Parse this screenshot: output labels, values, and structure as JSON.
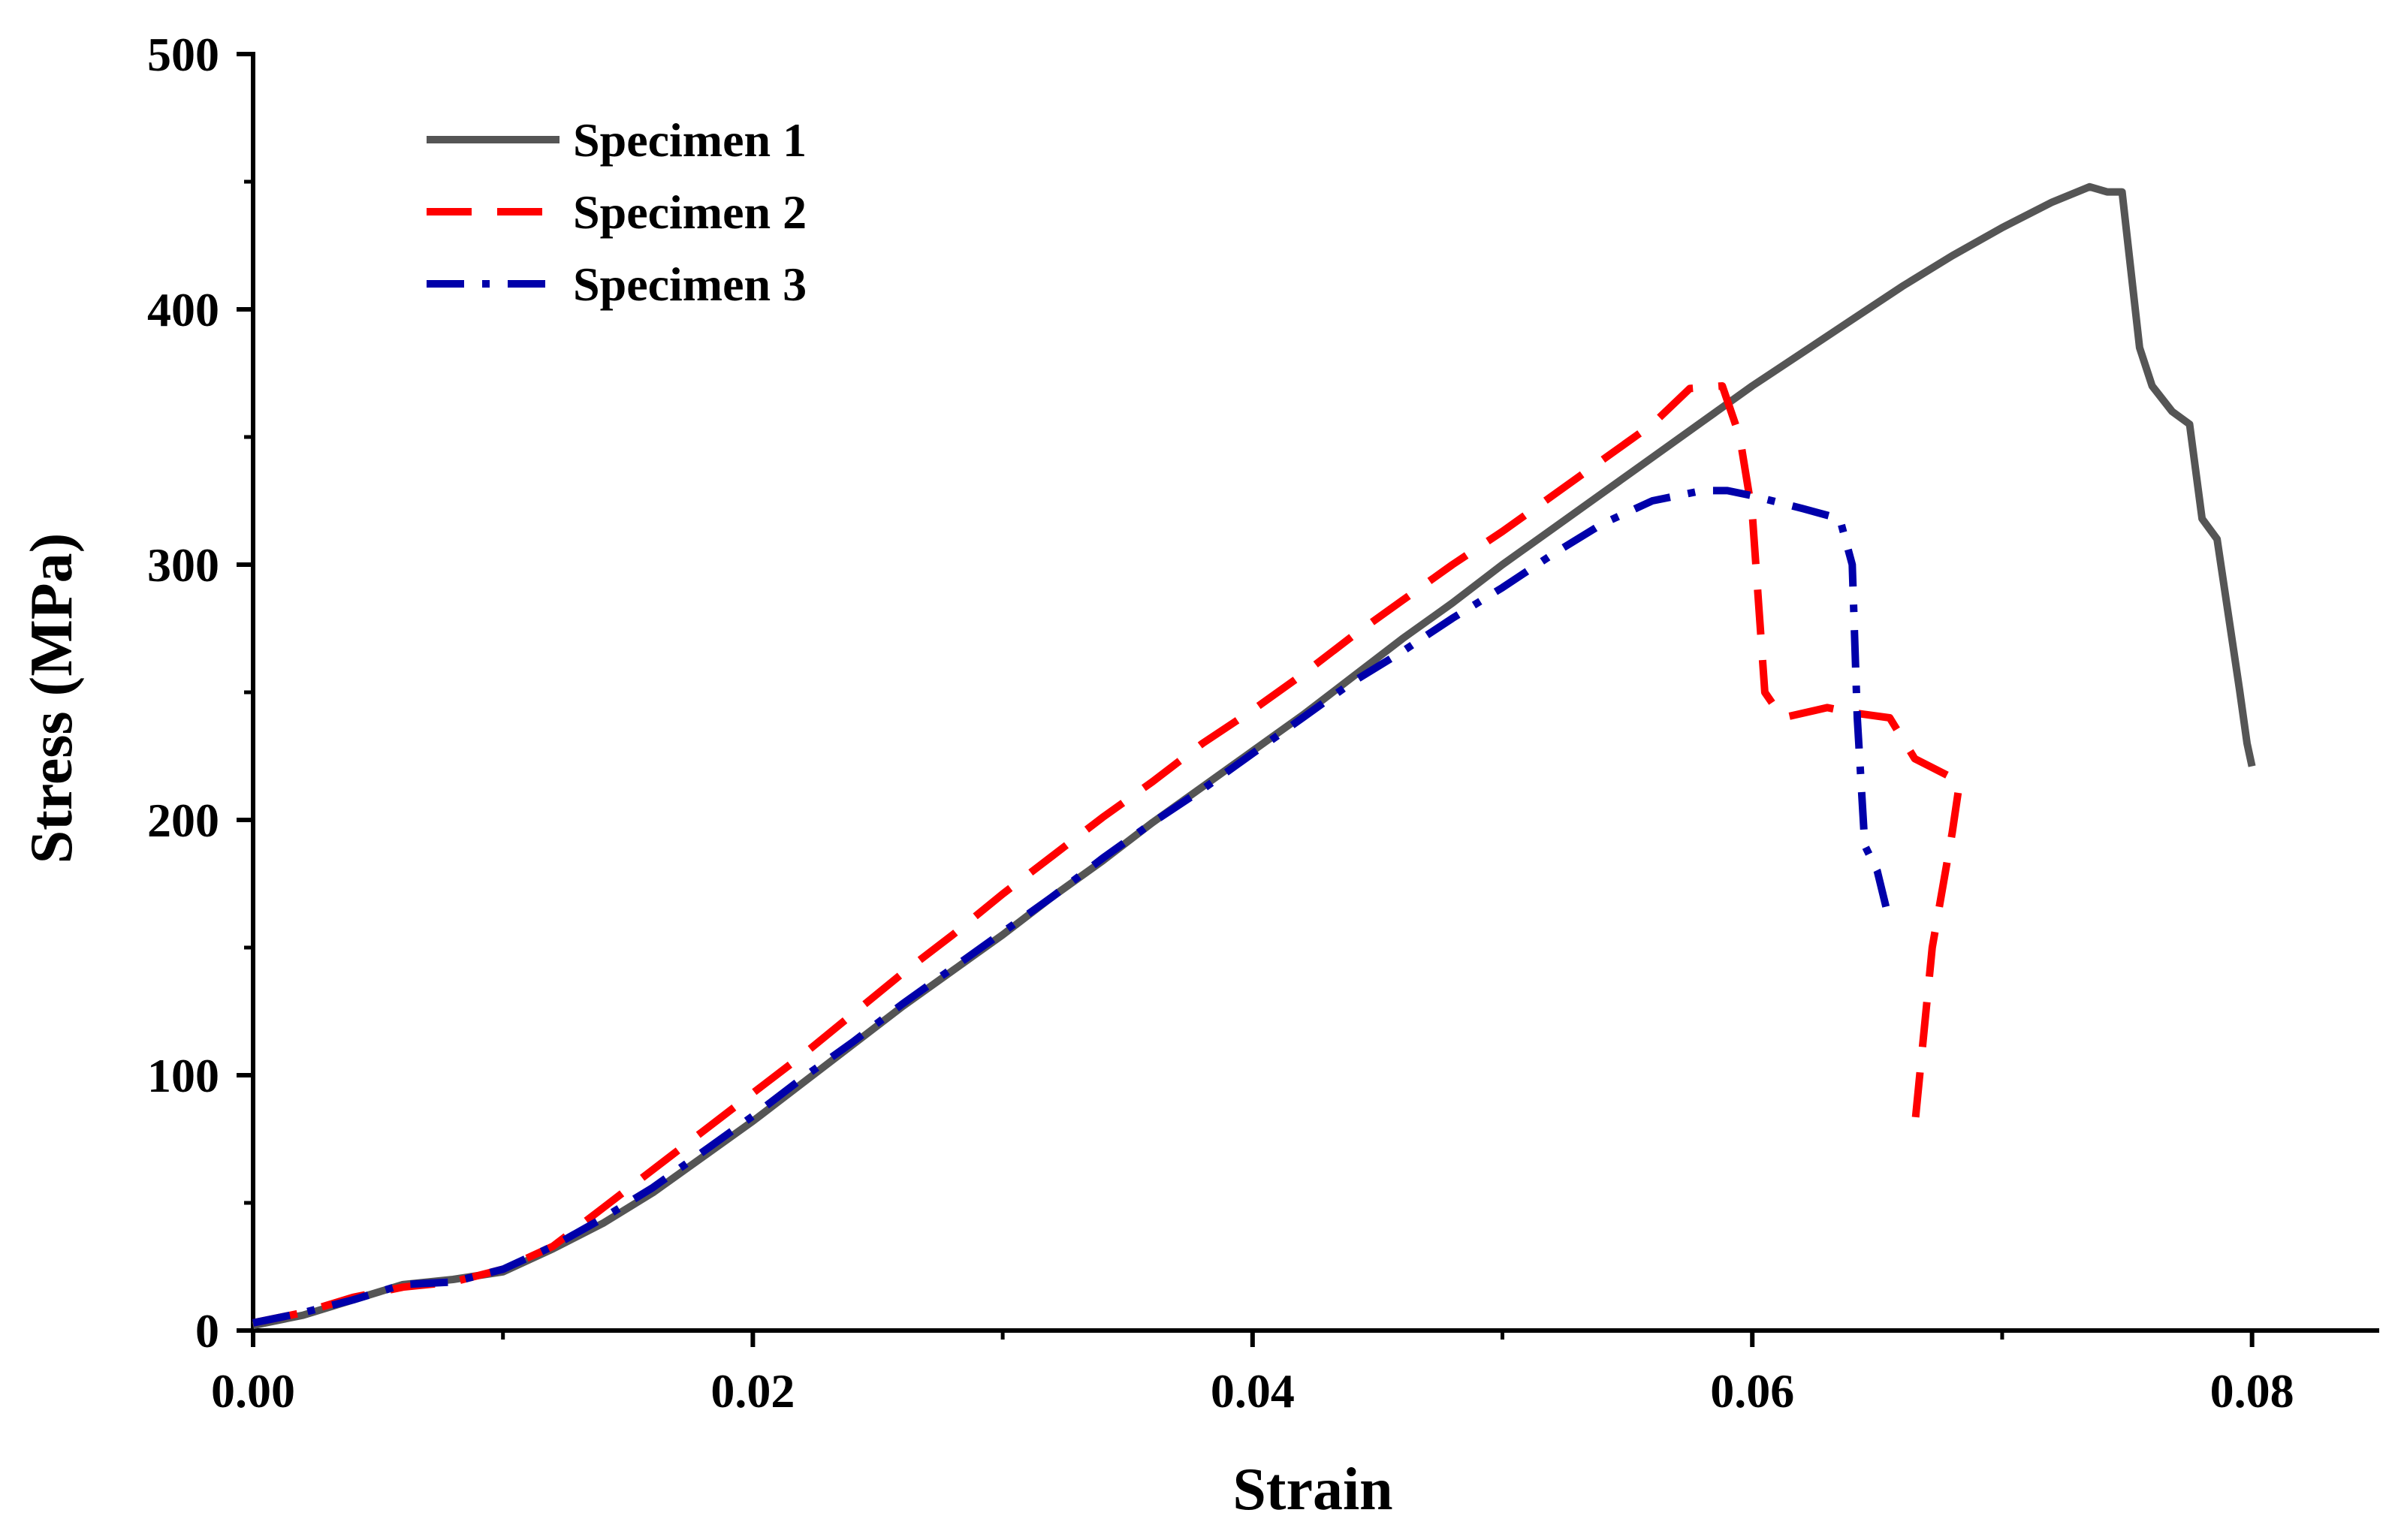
{
  "chart_data": {
    "type": "line",
    "title": "",
    "xlabel": "Strain",
    "ylabel": "Stress (MPa)",
    "xlim": [
      0,
      0.085
    ],
    "ylim": [
      0,
      500
    ],
    "xticks": [
      0.0,
      0.02,
      0.04,
      0.06,
      0.08
    ],
    "xtick_labels": [
      "0.00",
      "0.02",
      "0.04",
      "0.06",
      "0.08"
    ],
    "yticks": [
      0,
      100,
      200,
      300,
      400,
      500
    ],
    "ytick_labels": [
      "0",
      "100",
      "200",
      "300",
      "400",
      "500"
    ],
    "grid": false,
    "legend_position": "top-left",
    "series": [
      {
        "name": "Specimen 1",
        "color": "#555555",
        "dash": "solid",
        "x": [
          0,
          0.002,
          0.004,
          0.006,
          0.008,
          0.01,
          0.012,
          0.014,
          0.016,
          0.018,
          0.02,
          0.022,
          0.024,
          0.026,
          0.028,
          0.03,
          0.032,
          0.034,
          0.036,
          0.038,
          0.04,
          0.042,
          0.044,
          0.046,
          0.048,
          0.05,
          0.052,
          0.054,
          0.056,
          0.058,
          0.06,
          0.062,
          0.064,
          0.066,
          0.068,
          0.07,
          0.072,
          0.0735,
          0.0742,
          0.0748,
          0.0755,
          0.076,
          0.0768,
          0.0775,
          0.078,
          0.0786,
          0.0795,
          0.0798,
          0.08
        ],
        "y": [
          2,
          6,
          12,
          18,
          20,
          23,
          32,
          42,
          54,
          68,
          82,
          97,
          112,
          127,
          141,
          155,
          170,
          184,
          199,
          213,
          227,
          241,
          256,
          271,
          285,
          300,
          314,
          328,
          342,
          356,
          370,
          383,
          396,
          409,
          421,
          432,
          442,
          448,
          446,
          446,
          385,
          370,
          360,
          355,
          318,
          310,
          251,
          230,
          221
        ]
      },
      {
        "name": "Specimen 2",
        "color": "#ff0000",
        "dash": "dashed",
        "x": [
          0,
          0.002,
          0.004,
          0.006,
          0.008,
          0.01,
          0.012,
          0.014,
          0.016,
          0.018,
          0.02,
          0.022,
          0.024,
          0.026,
          0.028,
          0.03,
          0.032,
          0.034,
          0.036,
          0.038,
          0.04,
          0.042,
          0.044,
          0.046,
          0.048,
          0.05,
          0.052,
          0.054,
          0.056,
          0.0575,
          0.0588,
          0.0595,
          0.06,
          0.0605,
          0.0612,
          0.063,
          0.064,
          0.0655,
          0.0665,
          0.0683,
          0.068,
          0.0672,
          0.0665
        ],
        "y": [
          3,
          7,
          13,
          17,
          19,
          24,
          33,
          48,
          63,
          78,
          93,
          108,
          124,
          140,
          155,
          171,
          186,
          201,
          215,
          230,
          243,
          257,
          272,
          286,
          300,
          313,
          327,
          341,
          355,
          369,
          370,
          350,
          320,
          250,
          240,
          244,
          242,
          240,
          224,
          215,
          195,
          150,
          80
        ]
      },
      {
        "name": "Specimen 3",
        "color": "#0000aa",
        "dash": "dashdot",
        "x": [
          0,
          0.002,
          0.004,
          0.006,
          0.008,
          0.01,
          0.012,
          0.014,
          0.016,
          0.018,
          0.02,
          0.022,
          0.024,
          0.026,
          0.028,
          0.03,
          0.032,
          0.034,
          0.036,
          0.038,
          0.04,
          0.042,
          0.044,
          0.046,
          0.048,
          0.05,
          0.052,
          0.054,
          0.056,
          0.058,
          0.059,
          0.06,
          0.062,
          0.0635,
          0.064,
          0.0642,
          0.0645,
          0.065,
          0.0655
        ],
        "y": [
          3,
          7,
          12,
          18,
          19,
          24,
          33,
          44,
          56,
          70,
          84,
          99,
          113,
          128,
          142,
          156,
          170,
          185,
          199,
          212,
          226,
          240,
          254,
          266,
          279,
          291,
          304,
          316,
          325,
          329,
          329,
          327,
          322,
          318,
          300,
          240,
          190,
          180,
          160
        ]
      }
    ]
  }
}
